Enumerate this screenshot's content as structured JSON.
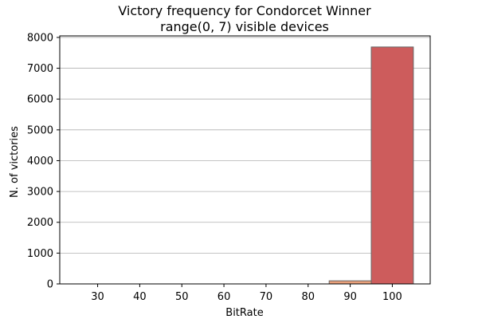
{
  "chart_data": {
    "type": "bar",
    "title_lines": [
      "Victory frequency for Condorcet Winner",
      "range(0, 7) visible devices"
    ],
    "xlabel": "BitRate",
    "ylabel": "N. of victories",
    "x_ticks": [
      30,
      40,
      50,
      60,
      70,
      80,
      90,
      100
    ],
    "y_ticks": [
      0,
      1000,
      2000,
      3000,
      4000,
      5000,
      6000,
      7000,
      8000
    ],
    "xlim": [
      21,
      109
    ],
    "ylim": [
      0,
      8050
    ],
    "bar_width": 10,
    "grid": "y",
    "bars": [
      {
        "center": 30,
        "value": 0,
        "color": "#c4e3e0"
      },
      {
        "center": 40,
        "value": 0,
        "color": "#c4e3e0"
      },
      {
        "center": 50,
        "value": 0,
        "color": "#c4e3e0"
      },
      {
        "center": 60,
        "value": 0,
        "color": "#c4e3e0"
      },
      {
        "center": 70,
        "value": 0,
        "color": "#c4e3e0"
      },
      {
        "center": 80,
        "value": 0,
        "color": "#c4e3e0"
      },
      {
        "center": 90,
        "value": 100,
        "color": "#e9a07a"
      },
      {
        "center": 100,
        "value": 7690,
        "color": "#cd5c5c"
      }
    ]
  }
}
